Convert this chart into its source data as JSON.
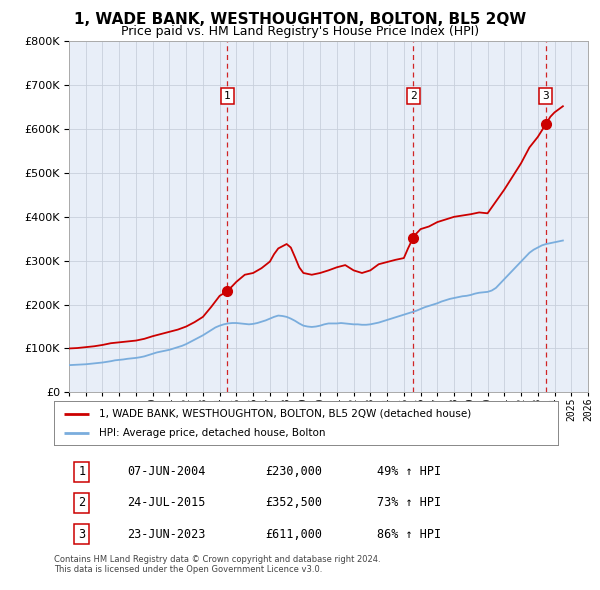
{
  "title": "1, WADE BANK, WESTHOUGHTON, BOLTON, BL5 2QW",
  "subtitle": "Price paid vs. HM Land Registry's House Price Index (HPI)",
  "title_fontsize": 11,
  "subtitle_fontsize": 9,
  "bg_color": "#e8eef8",
  "fig_bg_color": "#ffffff",
  "legend_line1": "1, WADE BANK, WESTHOUGHTON, BOLTON, BL5 2QW (detached house)",
  "legend_line2": "HPI: Average price, detached house, Bolton",
  "sale_color": "#cc0000",
  "hpi_color": "#7aaddd",
  "grid_color": "#c8d0dc",
  "footnote": "Contains HM Land Registry data © Crown copyright and database right 2024.\nThis data is licensed under the Open Government Licence v3.0.",
  "sales": [
    {
      "num": 1,
      "date": "07-JUN-2004",
      "price": "£230,000",
      "pct": "49% ↑ HPI",
      "year": 2004.44,
      "value": 230000
    },
    {
      "num": 2,
      "date": "24-JUL-2015",
      "price": "£352,500",
      "pct": "73% ↑ HPI",
      "year": 2015.56,
      "value": 352500
    },
    {
      "num": 3,
      "date": "23-JUN-2023",
      "price": "£611,000",
      "pct": "86% ↑ HPI",
      "year": 2023.48,
      "value": 611000
    }
  ],
  "hpi_data": {
    "years": [
      1995.0,
      1995.25,
      1995.5,
      1995.75,
      1996.0,
      1996.25,
      1996.5,
      1996.75,
      1997.0,
      1997.25,
      1997.5,
      1997.75,
      1998.0,
      1998.25,
      1998.5,
      1998.75,
      1999.0,
      1999.25,
      1999.5,
      1999.75,
      2000.0,
      2000.25,
      2000.5,
      2000.75,
      2001.0,
      2001.25,
      2001.5,
      2001.75,
      2002.0,
      2002.25,
      2002.5,
      2002.75,
      2003.0,
      2003.25,
      2003.5,
      2003.75,
      2004.0,
      2004.25,
      2004.5,
      2004.75,
      2005.0,
      2005.25,
      2005.5,
      2005.75,
      2006.0,
      2006.25,
      2006.5,
      2006.75,
      2007.0,
      2007.25,
      2007.5,
      2007.75,
      2008.0,
      2008.25,
      2008.5,
      2008.75,
      2009.0,
      2009.25,
      2009.5,
      2009.75,
      2010.0,
      2010.25,
      2010.5,
      2010.75,
      2011.0,
      2011.25,
      2011.5,
      2011.75,
      2012.0,
      2012.25,
      2012.5,
      2012.75,
      2013.0,
      2013.25,
      2013.5,
      2013.75,
      2014.0,
      2014.25,
      2014.5,
      2014.75,
      2015.0,
      2015.25,
      2015.5,
      2015.75,
      2016.0,
      2016.25,
      2016.5,
      2016.75,
      2017.0,
      2017.25,
      2017.5,
      2017.75,
      2018.0,
      2018.25,
      2018.5,
      2018.75,
      2019.0,
      2019.25,
      2019.5,
      2019.75,
      2020.0,
      2020.25,
      2020.5,
      2020.75,
      2021.0,
      2021.25,
      2021.5,
      2021.75,
      2022.0,
      2022.25,
      2022.5,
      2022.75,
      2023.0,
      2023.25,
      2023.5,
      2023.75,
      2024.0,
      2024.25,
      2024.5
    ],
    "values": [
      62000,
      62500,
      63000,
      63500,
      64000,
      65000,
      66000,
      67000,
      68000,
      69500,
      71000,
      73000,
      74000,
      75000,
      76500,
      77500,
      78500,
      80000,
      82000,
      85000,
      88000,
      91000,
      93000,
      95000,
      97000,
      100000,
      103000,
      106000,
      110000,
      115000,
      120000,
      125000,
      130000,
      136000,
      142000,
      148000,
      152000,
      155000,
      157000,
      158000,
      158000,
      157000,
      156000,
      155000,
      156000,
      158000,
      161000,
      164000,
      168000,
      172000,
      175000,
      174000,
      172000,
      168000,
      163000,
      157000,
      152000,
      150000,
      149000,
      150000,
      152000,
      155000,
      157000,
      157000,
      157000,
      158000,
      157000,
      156000,
      155000,
      155000,
      154000,
      154000,
      155000,
      157000,
      159000,
      162000,
      165000,
      168000,
      171000,
      174000,
      177000,
      180000,
      183000,
      186000,
      190000,
      194000,
      197000,
      200000,
      203000,
      207000,
      210000,
      213000,
      215000,
      217000,
      219000,
      220000,
      222000,
      225000,
      227000,
      228000,
      229000,
      232000,
      238000,
      248000,
      258000,
      268000,
      278000,
      288000,
      298000,
      308000,
      318000,
      325000,
      330000,
      335000,
      338000,
      340000,
      342000,
      344000,
      346000
    ]
  },
  "property_data": {
    "years": [
      1995.0,
      1995.5,
      1996.0,
      1996.5,
      1997.0,
      1997.5,
      1998.0,
      1998.5,
      1999.0,
      1999.5,
      2000.0,
      2000.5,
      2001.0,
      2001.5,
      2002.0,
      2002.5,
      2003.0,
      2003.5,
      2004.0,
      2004.44,
      2004.75,
      2005.0,
      2005.5,
      2006.0,
      2006.5,
      2007.0,
      2007.25,
      2007.5,
      2008.0,
      2008.25,
      2008.5,
      2008.75,
      2009.0,
      2009.5,
      2010.0,
      2010.5,
      2011.0,
      2011.5,
      2012.0,
      2012.5,
      2013.0,
      2013.5,
      2014.0,
      2014.5,
      2015.0,
      2015.25,
      2015.56,
      2015.75,
      2016.0,
      2016.5,
      2017.0,
      2017.5,
      2018.0,
      2018.5,
      2019.0,
      2019.5,
      2020.0,
      2020.5,
      2021.0,
      2021.5,
      2022.0,
      2022.5,
      2023.0,
      2023.48,
      2023.75,
      2024.0,
      2024.5
    ],
    "values": [
      100000,
      101000,
      103000,
      105000,
      108000,
      112000,
      114000,
      116000,
      118000,
      122000,
      128000,
      133000,
      138000,
      143000,
      150000,
      160000,
      172000,
      195000,
      220000,
      230000,
      242000,
      252000,
      268000,
      272000,
      283000,
      298000,
      315000,
      328000,
      338000,
      330000,
      308000,
      285000,
      272000,
      268000,
      272000,
      278000,
      285000,
      290000,
      278000,
      272000,
      278000,
      292000,
      297000,
      302000,
      306000,
      328000,
      352500,
      362000,
      372000,
      378000,
      388000,
      394000,
      400000,
      403000,
      406000,
      410000,
      408000,
      435000,
      462000,
      492000,
      522000,
      558000,
      582000,
      611000,
      628000,
      638000,
      652000
    ]
  },
  "xmin": 1995,
  "xmax": 2026,
  "ymin": 0,
  "ymax": 800000,
  "yticks": [
    0,
    100000,
    200000,
    300000,
    400000,
    500000,
    600000,
    700000,
    800000
  ]
}
